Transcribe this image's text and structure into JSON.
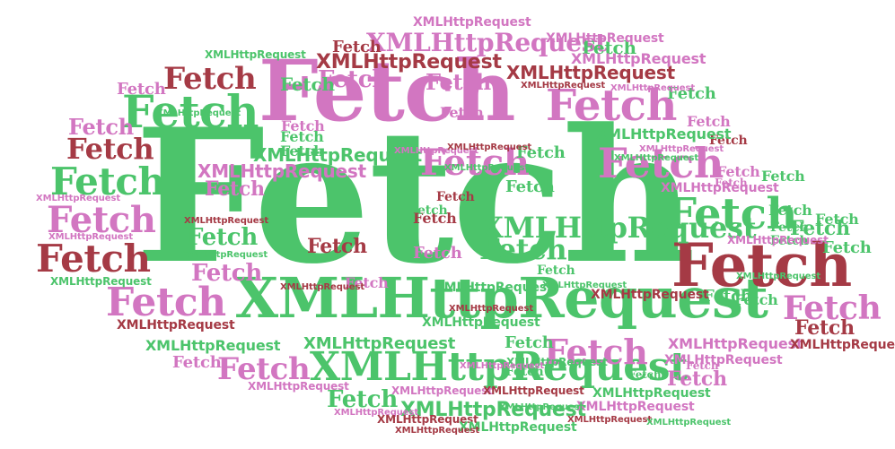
{
  "palette": {
    "green": "#4cc46b",
    "light_green": "#6fd089",
    "pink": "#d276c1",
    "maroon": "#a53a45",
    "background": "#ffffff"
  },
  "words": [
    {
      "text": "Fetch",
      "color": "green"
    },
    {
      "text": "Fetch",
      "color": "pink"
    },
    {
      "text": "XMLHttpRequest",
      "color": "green"
    },
    {
      "text": "Fetch",
      "color": "maroon"
    },
    {
      "text": "XMLHttpRequest",
      "color": "green"
    },
    {
      "text": "XMLHttpRequest",
      "color": "pink"
    },
    {
      "text": "Fetch",
      "color": "green"
    },
    {
      "text": "Fetch",
      "color": "green"
    },
    {
      "text": "Fetch",
      "color": "pink"
    },
    {
      "text": "Fetch",
      "color": "pink"
    },
    {
      "text": "Fetch",
      "color": "pink"
    },
    {
      "text": "Fetch",
      "color": "green"
    },
    {
      "text": "Fetch",
      "color": "maroon"
    },
    {
      "text": "Fetch",
      "color": "pink"
    },
    {
      "text": "Fetch",
      "color": "pink"
    },
    {
      "text": "Fetch",
      "color": "pink"
    },
    {
      "text": "Fetch",
      "color": "maroon"
    },
    {
      "text": "Fetch",
      "color": "pink"
    },
    {
      "text": "Fetch",
      "color": "pink"
    },
    {
      "text": "XMLHttpRequest",
      "color": "green"
    },
    {
      "text": "Fetch",
      "color": "green"
    },
    {
      "text": "Fetch",
      "color": "maroon"
    },
    {
      "text": "Fetch",
      "color": "pink"
    },
    {
      "text": "Fetch",
      "color": "green"
    },
    {
      "text": "Fetch",
      "color": "pink"
    },
    {
      "text": "Fetch",
      "color": "pink"
    },
    {
      "text": "Fetch",
      "color": "green"
    },
    {
      "text": "Fetch",
      "color": "pink"
    },
    {
      "text": "Fetch",
      "color": "maroon"
    },
    {
      "text": "Fetch",
      "color": "pink"
    },
    {
      "text": "Fetch",
      "color": "green"
    },
    {
      "text": "Fetch",
      "color": "maroon"
    },
    {
      "text": "Fetch",
      "color": "green"
    },
    {
      "text": "Fetch",
      "color": "green"
    },
    {
      "text": "Fetch",
      "color": "green"
    },
    {
      "text": "Fetch",
      "color": "pink"
    },
    {
      "text": "Fetch",
      "color": "pink"
    },
    {
      "text": "Fetch",
      "color": "green"
    },
    {
      "text": "Fetch",
      "color": "maroon"
    },
    {
      "text": "Fetch",
      "color": "green"
    },
    {
      "text": "Fetch",
      "color": "pink"
    },
    {
      "text": "Fetch",
      "color": "maroon"
    },
    {
      "text": "Fetch",
      "color": "pink"
    },
    {
      "text": "Fetch",
      "color": "green"
    },
    {
      "text": "Fetch",
      "color": "pink"
    },
    {
      "text": "Fetch",
      "color": "maroon"
    },
    {
      "text": "Fetch",
      "color": "green"
    },
    {
      "text": "Fetch",
      "color": "green"
    },
    {
      "text": "Fetch",
      "color": "green"
    },
    {
      "text": "Fetch",
      "color": "green"
    },
    {
      "text": "Fetch",
      "color": "pink"
    },
    {
      "text": "Fetch",
      "color": "green"
    },
    {
      "text": "Fetch",
      "color": "pink"
    },
    {
      "text": "Fetch",
      "color": "pink"
    },
    {
      "text": "Fetch",
      "color": "green"
    },
    {
      "text": "Fetch",
      "color": "green"
    },
    {
      "text": "Fetch",
      "color": "green"
    },
    {
      "text": "Fetch",
      "color": "green"
    },
    {
      "text": "Fetch",
      "color": "pink"
    },
    {
      "text": "Fetch",
      "color": "green"
    },
    {
      "text": "Fetch",
      "color": "maroon"
    },
    {
      "text": "Fetch",
      "color": "green"
    },
    {
      "text": "Fetch",
      "color": "green"
    },
    {
      "text": "Fetch",
      "color": "green"
    },
    {
      "text": "Fetch",
      "color": "pink"
    },
    {
      "text": "Fetch",
      "color": "pink"
    },
    {
      "text": "Fetch",
      "color": "green"
    },
    {
      "text": "XMLHttpRequest",
      "color": "maroon"
    },
    {
      "text": "XMLHttpRequest",
      "color": "maroon"
    },
    {
      "text": "XMLHttpRequest",
      "color": "pink"
    },
    {
      "text": "XMLHttpRequest",
      "color": "green"
    },
    {
      "text": "XMLHttpRequest",
      "color": "pink"
    },
    {
      "text": "XMLHttpRequest",
      "color": "green"
    },
    {
      "text": "XMLHttpRequest",
      "color": "pink"
    },
    {
      "text": "XMLHttpRequest",
      "color": "pink"
    },
    {
      "text": "XMLHttpRequest",
      "color": "maroon"
    },
    {
      "text": "XMLHttpRequest",
      "color": "green"
    },
    {
      "text": "XMLHttpRequest",
      "color": "green"
    },
    {
      "text": "XMLHttpRequest",
      "color": "green"
    },
    {
      "text": "XMLHttpRequest",
      "color": "maroon"
    },
    {
      "text": "XMLHttpRequest",
      "color": "green"
    },
    {
      "text": "XMLHttpRequest",
      "color": "pink"
    },
    {
      "text": "XMLHttpRequest",
      "color": "green"
    },
    {
      "text": "XMLHttpRequest",
      "color": "green"
    },
    {
      "text": "XMLHttpRequest",
      "color": "pink"
    },
    {
      "text": "XMLHttpRequest",
      "color": "green"
    },
    {
      "text": "XMLHttpRequest",
      "color": "maroon"
    },
    {
      "text": "XMLHttpRequest",
      "color": "pink"
    },
    {
      "text": "XMLHttpRequest",
      "color": "pink"
    },
    {
      "text": "XMLHttpRequest",
      "color": "maroon"
    },
    {
      "text": "XMLHttpRequest",
      "color": "green"
    },
    {
      "text": "XMLHttpRequest",
      "color": "green"
    },
    {
      "text": "XMLHttpRequest",
      "color": "pink"
    },
    {
      "text": "XMLHttpRequest",
      "color": "maroon"
    },
    {
      "text": "XMLHttpRequest",
      "color": "pink"
    },
    {
      "text": "XMLHttpRequest",
      "color": "green"
    },
    {
      "text": "XMLHttpRequest",
      "color": "pink"
    },
    {
      "text": "XMLHttpRequest",
      "color": "maroon"
    },
    {
      "text": "XMLHttpRequest",
      "color": "green"
    },
    {
      "text": "XMLHttpRequest",
      "color": "pink"
    },
    {
      "text": "XMLHttpRequest",
      "color": "maroon"
    },
    {
      "text": "XMLHttpRequest",
      "color": "pink"
    },
    {
      "text": "XMLHttpRequest",
      "color": "green"
    },
    {
      "text": "XMLHttpRequest",
      "color": "pink"
    },
    {
      "text": "XMLHttpRequest",
      "color": "maroon"
    },
    {
      "text": "XMLHttpRequest",
      "color": "pink"
    },
    {
      "text": "XMLHttpRequest",
      "color": "green"
    },
    {
      "text": "XMLHttpRequest",
      "color": "green"
    },
    {
      "text": "XMLHttpRequest",
      "color": "pink"
    },
    {
      "text": "XMLHttpRequest",
      "color": "pink"
    },
    {
      "text": "XMLHttpRequest",
      "color": "maroon"
    },
    {
      "text": "XMLHttpRequest",
      "color": "green"
    },
    {
      "text": "XMLHttpRequest",
      "color": "green"
    },
    {
      "text": "XMLHttpRequest",
      "color": "maroon"
    },
    {
      "text": "XMLHttpRequest",
      "color": "green"
    },
    {
      "text": "XMLHttpRequest",
      "color": "maroon"
    },
    {
      "text": "XMLHttpRequest",
      "color": "pink"
    },
    {
      "text": "XMLHttpRequest",
      "color": "maroon"
    },
    {
      "text": "XMLHttpRequest",
      "color": "green"
    }
  ]
}
